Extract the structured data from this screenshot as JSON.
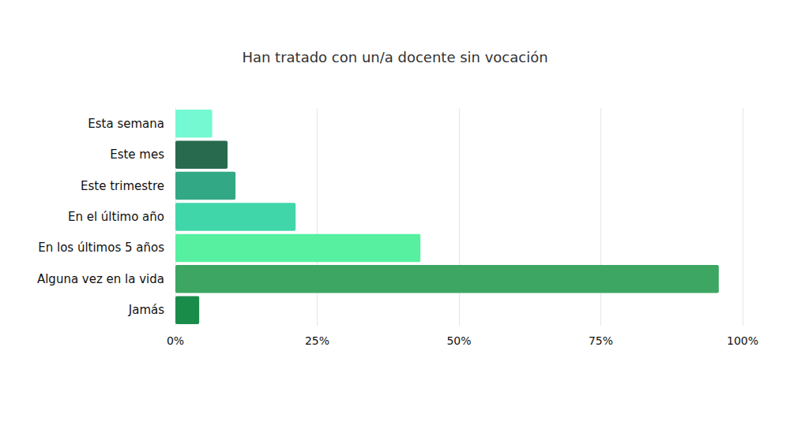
{
  "chart_data": {
    "type": "bar",
    "orientation": "horizontal",
    "title": "Han tratado con un/a docente sin vocación",
    "categories": [
      "Esta semana",
      "Este mes",
      "Este trimestre",
      "En el último año",
      "En los últimos 5 años",
      "Alguna vez en la vida",
      "Jamás"
    ],
    "values": [
      6.5,
      9.2,
      10.6,
      21.2,
      43.2,
      95.8,
      4.2
    ],
    "colors": [
      "#74f9d3",
      "#276a4e",
      "#33a884",
      "#40d6aa",
      "#56f0a0",
      "#3ca662",
      "#1a8c4a"
    ],
    "xlim": [
      0,
      100
    ],
    "xticks": [
      {
        "value": 0,
        "label": "0%"
      },
      {
        "value": 25,
        "label": "25%"
      },
      {
        "value": 50,
        "label": "50%"
      },
      {
        "value": 75,
        "label": "75%"
      },
      {
        "value": 100,
        "label": "100%"
      }
    ],
    "grid": true
  }
}
